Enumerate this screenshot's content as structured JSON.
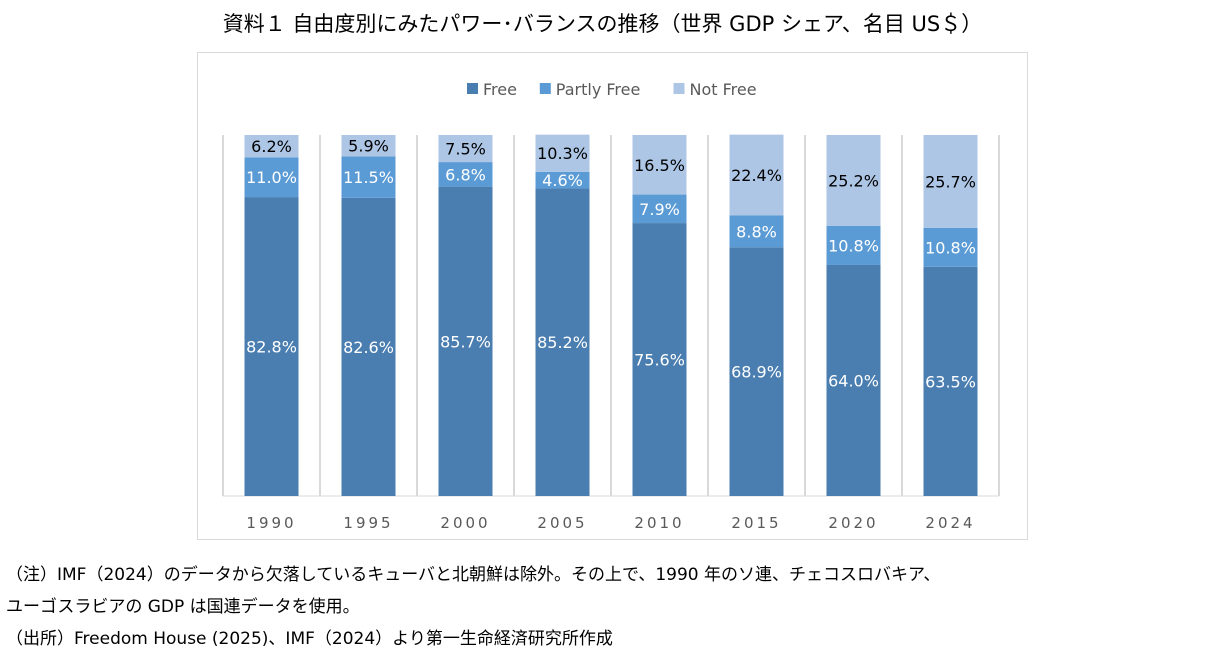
{
  "title": "資料１ 自由度別にみたパワー･バランスの推移（世界 GDP シェア、名目 US＄）",
  "notes": [
    "（注）IMF（2024）のデータから欠落しているキューバと北朝鮮は除外。その上で、1990 年のソ連、チェコスロバキア、",
    "ユーゴスラビアの GDP は国連データを使用。",
    "（出所）Freedom House (2025)、IMF（2024）より第一生命経済研究所作成"
  ],
  "chart_data": {
    "type": "bar",
    "stacked": true,
    "categories": [
      "1990",
      "1995",
      "2000",
      "2005",
      "2010",
      "2015",
      "2020",
      "2024"
    ],
    "series": [
      {
        "name": "Free",
        "color": "#4a7eb0",
        "label_color": "#ffffff",
        "values": [
          82.8,
          82.6,
          85.7,
          85.2,
          75.6,
          68.9,
          64.0,
          63.5
        ]
      },
      {
        "name": "Partly Free",
        "color": "#5b9bd5",
        "label_color": "#ffffff",
        "values": [
          11.0,
          11.5,
          6.8,
          4.6,
          7.9,
          8.8,
          10.8,
          10.8
        ]
      },
      {
        "name": "Not Free",
        "color": "#adc6e6",
        "label_color": "#000000",
        "values": [
          6.2,
          5.9,
          7.5,
          10.3,
          16.5,
          22.4,
          25.2,
          25.7
        ]
      }
    ],
    "ylim": [
      0,
      100
    ],
    "legend": "top-center",
    "grid": "vertical category separators"
  }
}
